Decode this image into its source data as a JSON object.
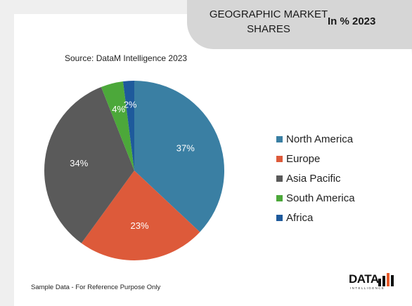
{
  "header": {
    "title": "GEOGRAPHIC MARKET SHARES",
    "year_label": "In % 2023"
  },
  "source": "Source: DataM Intelligence 2023",
  "footer_note": "Sample Data - For Reference Purpose Only",
  "logo": {
    "word": "DATA",
    "tagline": "INTELLIGENCE"
  },
  "chart_data": {
    "type": "pie",
    "title": "GEOGRAPHIC MARKET SHARES",
    "subtitle": "In % 2023",
    "legend_position": "right",
    "slices": [
      {
        "name": "North America",
        "value": 37,
        "label": "37%",
        "color": "#3a7fa3"
      },
      {
        "name": "Europe",
        "value": 23,
        "label": "23%",
        "color": "#dd5a3a"
      },
      {
        "name": "Asia Pacific",
        "value": 34,
        "label": "34%",
        "color": "#5a5a5a"
      },
      {
        "name": "South America",
        "value": 4,
        "label": "4%",
        "color": "#4ca83a"
      },
      {
        "name": "Africa",
        "value": 2,
        "label": "2%",
        "color": "#1e5a9c"
      }
    ]
  }
}
